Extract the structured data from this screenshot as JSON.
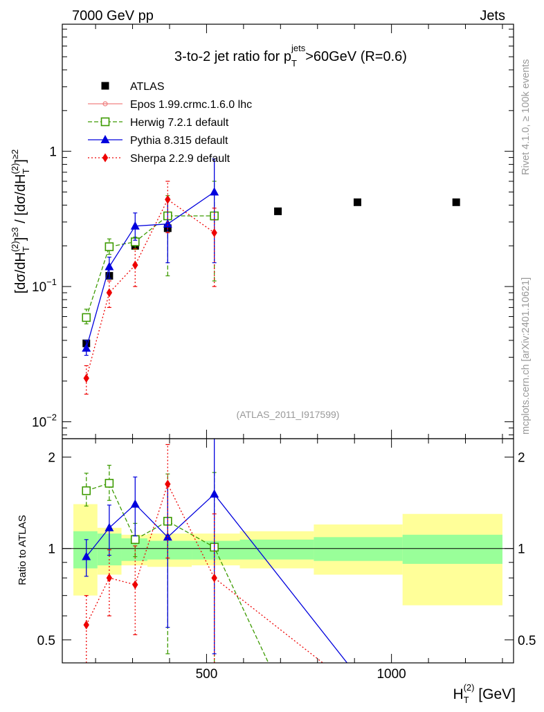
{
  "header": {
    "left": "7000 GeV pp",
    "right": "Jets"
  },
  "side": {
    "rivet": "Rivet 4.1.0, ≥ 100k events",
    "site": "mcplots.cern.ch [arXiv:2401.10621]"
  },
  "colors": {
    "atlas": "#000000",
    "epos": "#f08080",
    "herwig": "#3c9a00",
    "pythia": "#0000dd",
    "sherpa": "#ee0000",
    "band_green": "#99ff99",
    "band_yellow": "#ffff99"
  },
  "chart_data": [
    {
      "type": "line",
      "panel": "main",
      "title": "3-to-2 jet ratio for p_T^jets>60GeV (R=0.6)",
      "title_parts": {
        "pre": "3-to-2 jet ratio for p",
        "sub": "T",
        "sup": "jets",
        "post": ">60GeV (R=0.6)"
      },
      "xlabel": "H_T^(2) [GeV]",
      "ylabel": "[dσ/dH_T^(2)]^≥3 / [dσ/dH_T^(2)]^≥2",
      "ylabel_parts": {
        "a": "[dσ/dH",
        "a_sub": "T",
        "a_sup": "(2)",
        "a_tail": "]",
        "a_exp": "≥3",
        "mid": " / [dσ/dH",
        "b_sub": "T",
        "b_sup": "(2)",
        "b_tail": "]",
        "b_exp": "≥2"
      },
      "yscale": "log",
      "xlim": [
        110,
        1330
      ],
      "ylim": [
        0.0075,
        8.7
      ],
      "y_ticks": [
        {
          "value": 0.01,
          "base": "10",
          "exp": "−2"
        },
        {
          "value": 0.1,
          "base": "10",
          "exp": "−1"
        },
        {
          "value": 1,
          "label": "1"
        }
      ],
      "watermark": "(ATLAS_2011_I917599)",
      "legend_position": "top-left",
      "series": [
        {
          "name": "ATLAS",
          "key": "atlas",
          "marker": "square-filled",
          "style": "none",
          "x": [
            175,
            237,
            307,
            395,
            521,
            693,
            908,
            1175
          ],
          "y": [
            0.038,
            0.12,
            0.2,
            0.27,
            0.33,
            0.36,
            0.42,
            0.42
          ]
        },
        {
          "name": "Epos 1.99.crmc.1.6.0 lhc",
          "key": "epos",
          "marker": "cross",
          "style": "solid",
          "x": [],
          "y": []
        },
        {
          "name": "Herwig 7.2.1 default",
          "key": "herwig",
          "marker": "square-open",
          "style": "dashed",
          "x": [
            175,
            237,
            307,
            395,
            521
          ],
          "y": [
            0.059,
            0.197,
            0.214,
            0.333,
            0.333
          ],
          "err_lo": [
            0.053,
            0.173,
            0.188,
            0.12,
            0.11
          ],
          "err_hi": [
            0.068,
            0.225,
            0.232,
            0.47,
            0.6
          ]
        },
        {
          "name": "Pythia 8.315 default",
          "key": "pythia",
          "marker": "triangle",
          "style": "solid",
          "x": [
            175,
            237,
            307,
            395,
            521
          ],
          "y": [
            0.035,
            0.14,
            0.28,
            0.29,
            0.5
          ],
          "err_lo": [
            0.031,
            0.115,
            0.22,
            0.15,
            0.15
          ],
          "err_hi": [
            0.04,
            0.165,
            0.35,
            0.45,
            0.88
          ]
        },
        {
          "name": "Sherpa 2.2.9 default",
          "key": "sherpa",
          "marker": "diamond",
          "style": "dotted",
          "x": [
            175,
            237,
            307,
            395,
            521
          ],
          "y": [
            0.021,
            0.09,
            0.144,
            0.44,
            0.25
          ],
          "err_lo": [
            0.016,
            0.07,
            0.1,
            0.25,
            0.1
          ],
          "err_hi": [
            0.026,
            0.11,
            0.19,
            0.6,
            0.38
          ]
        }
      ]
    },
    {
      "type": "line",
      "panel": "ratio",
      "ylabel": "Ratio to ATLAS",
      "xlabel": "H_T^(2) [GeV]",
      "xlabel_parts": {
        "base": "H",
        "sub": "T",
        "sup": "(2)",
        "unit": " [GeV]"
      },
      "xlim": [
        110,
        1330
      ],
      "ylim": [
        0.42,
        2.3
      ],
      "yscale": "log",
      "x_ticks": [
        {
          "value": 500,
          "label": "500"
        },
        {
          "value": 1000,
          "label": "1000"
        }
      ],
      "y_ticks": [
        {
          "value": 0.5,
          "label": "0.5"
        },
        {
          "value": 1,
          "label": "1"
        },
        {
          "value": 2,
          "label": "2"
        }
      ],
      "bands": {
        "edges": [
          140,
          205,
          270,
          340,
          460,
          590,
          790,
          1030,
          1300
        ],
        "green_lo": [
          0.86,
          0.88,
          0.91,
          0.92,
          0.92,
          0.92,
          0.91,
          0.89
        ],
        "green_hi": [
          1.14,
          1.12,
          1.08,
          1.06,
          1.06,
          1.07,
          1.09,
          1.11
        ],
        "yellow_lo": [
          0.7,
          0.82,
          0.88,
          0.87,
          0.88,
          0.86,
          0.82,
          0.65
        ],
        "yellow_hi": [
          1.4,
          1.17,
          1.11,
          1.12,
          1.12,
          1.14,
          1.2,
          1.3
        ]
      },
      "series": [
        {
          "name": "Herwig 7.2.1 default",
          "key": "herwig",
          "marker": "square-open",
          "style": "dashed",
          "x": [
            175,
            237,
            307,
            395,
            521,
            693
          ],
          "y": [
            1.55,
            1.64,
            1.07,
            1.23,
            1.01,
            0.36
          ],
          "err_lo": [
            1.38,
            1.44,
            0.94,
            0.45,
            0.33,
            null
          ],
          "err_hi": [
            1.77,
            1.88,
            1.21,
            1.76,
            1.78,
            null
          ]
        },
        {
          "name": "Pythia 8.315 default",
          "key": "pythia",
          "marker": "triangle",
          "style": "solid",
          "x": [
            175,
            237,
            307,
            395,
            521,
            908
          ],
          "y": [
            0.94,
            1.17,
            1.4,
            1.09,
            1.51,
            0.38
          ],
          "err_lo": [
            0.81,
            0.95,
            1.1,
            0.55,
            0.45,
            null
          ],
          "err_hi": [
            1.07,
            1.39,
            1.72,
            1.63,
            2.6,
            null
          ]
        },
        {
          "name": "Sherpa 2.2.9 default",
          "key": "sherpa",
          "marker": "diamond",
          "style": "dotted",
          "x": [
            175,
            237,
            307,
            395,
            521,
            860
          ],
          "y": [
            0.56,
            0.8,
            0.76,
            1.63,
            0.8,
            0.38
          ],
          "err_lo": [
            0.4,
            0.6,
            0.52,
            0.93,
            0.3,
            null
          ],
          "err_hi": [
            0.7,
            0.99,
            1.02,
            2.2,
            1.3,
            null
          ]
        }
      ]
    }
  ]
}
